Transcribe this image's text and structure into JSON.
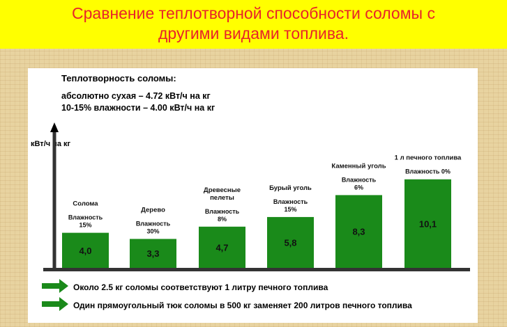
{
  "banner": {
    "line1": "Сравнение теплотворной способности соломы с",
    "line2": "другими видами топлива."
  },
  "info": {
    "heading": "Теплотворность соломы:",
    "line1": "абсолютно сухая – 4.72 кВт/ч на кг",
    "line2": "10-15% влажности – 4.00 кВт/ч на кг"
  },
  "chart_data": {
    "type": "bar",
    "ylabel": "кВт/ч на кг",
    "categories": [
      "Солома",
      "Дерево",
      "Древесные пелеты",
      "Бурый уголь",
      "Каменный уголь",
      "1 л печного топлива"
    ],
    "values": [
      4.0,
      3.3,
      4.7,
      5.8,
      8.3,
      10.1
    ],
    "value_labels": [
      "4,0",
      "3,3",
      "4,7",
      "5,8",
      "8,3",
      "10,1"
    ],
    "category_lines": [
      [
        "Солома"
      ],
      [
        "Дерево"
      ],
      [
        "Древесные",
        "пелеты"
      ],
      [
        "Бурый уголь"
      ],
      [
        "Каменный уголь"
      ],
      [
        "1 л печного топлива"
      ]
    ],
    "moisture_lines": [
      [
        "Влажность",
        "15%"
      ],
      [
        "Влажность",
        "30%"
      ],
      [
        "Влажность",
        "8%"
      ],
      [
        "Влажность",
        "15%"
      ],
      [
        "Влажность",
        "6%"
      ],
      [
        "Влажность 0%"
      ]
    ],
    "bar_color": "#1a8a1a",
    "axis_color": "#333333"
  },
  "footnotes": [
    "Около  2.5 кг соломы соответствуют 1 литру печного топлива",
    "Один прямоугольный тюк соломы в 500 кг заменяет 200 литров печного топлива"
  ],
  "colors": {
    "banner_bg": "#ffff00",
    "banner_text": "#e8232a",
    "arrow": "#1a8a1a"
  }
}
